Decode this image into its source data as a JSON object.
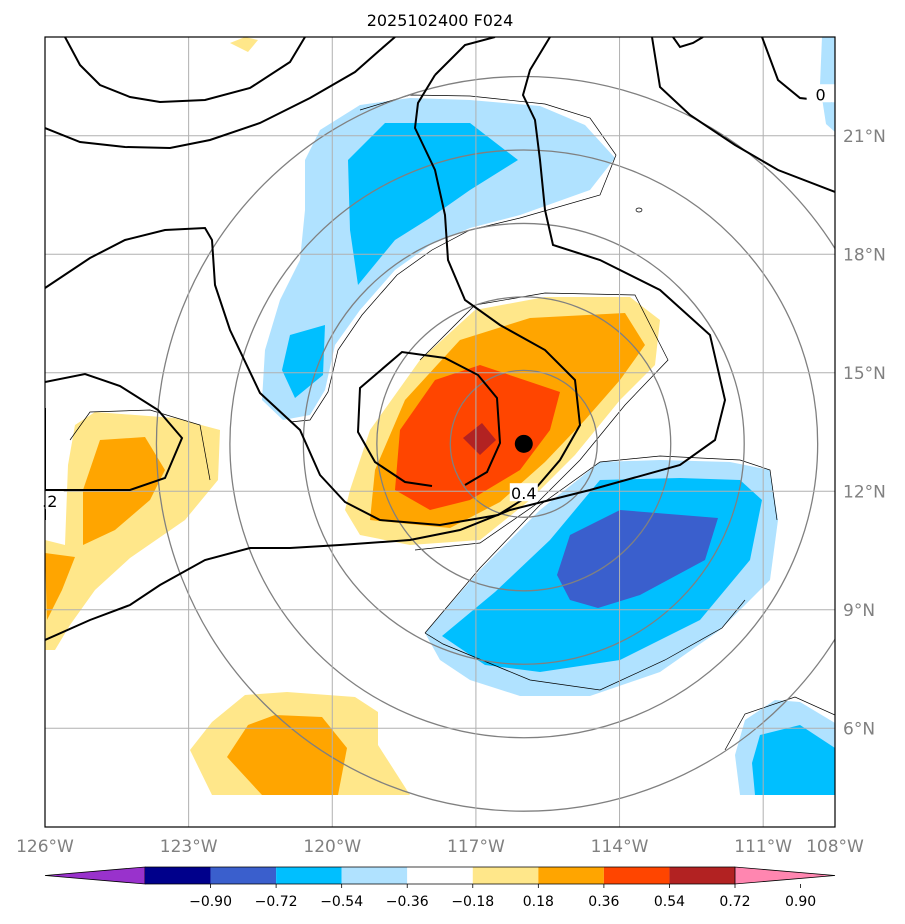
{
  "title": "2025102400 F024",
  "map": {
    "lon_range": [
      -126,
      -109.5
    ],
    "lat_range": [
      3.5,
      23.5
    ],
    "lon_ticks": [
      {
        "value": -126,
        "label": "126°W"
      },
      {
        "value": -123,
        "label": "123°W"
      },
      {
        "value": -120,
        "label": "120°W"
      },
      {
        "value": -117,
        "label": "117°W"
      },
      {
        "value": -114,
        "label": "114°W"
      },
      {
        "value": -111,
        "label": "111°W"
      },
      {
        "value": -108,
        "label": "108°W"
      }
    ],
    "lat_ticks": [
      {
        "value": 6,
        "label": "6°N"
      },
      {
        "value": 9,
        "label": "9°N"
      },
      {
        "value": 12,
        "label": "12°N"
      },
      {
        "value": 15,
        "label": "15°N"
      },
      {
        "value": 18,
        "label": "18°N"
      },
      {
        "value": 21,
        "label": "21°N"
      }
    ],
    "center_marker": {
      "lon": -116.0,
      "lat": 13.2
    },
    "contour_labels": [
      {
        "text": "0.4",
        "lon": -116.0,
        "lat": 11.9
      },
      {
        "text": ".2",
        "lon": -125.9,
        "lat": 11.7
      },
      {
        "text": "0",
        "lon": -109.8,
        "lat": 22.0
      }
    ],
    "range_rings_deg": [
      2,
      4,
      6,
      8,
      10
    ]
  },
  "colorbar": {
    "levels": [
      "−0.90",
      "−0.72",
      "−0.54",
      "−0.36",
      "−0.18",
      "0.18",
      "0.36",
      "0.54",
      "0.72",
      "0.90"
    ],
    "colors": [
      "#9932CC",
      "#00008B",
      "#3A5FCD",
      "#00BFFF",
      "#B0E2FF",
      "#FFFFFF",
      "#FFE78A",
      "#FFA500",
      "#FF4500",
      "#B22222",
      "#FF86B0"
    ]
  }
}
